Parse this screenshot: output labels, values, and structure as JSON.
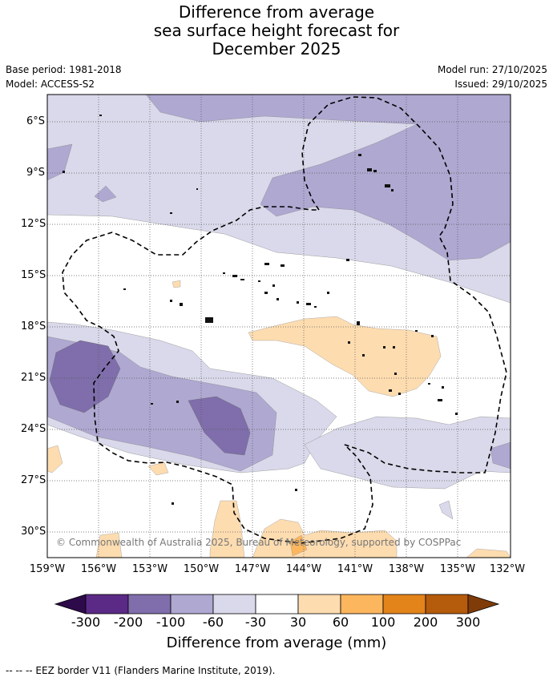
{
  "title": {
    "line1": "Difference from average",
    "line2": "sea surface height forecast for",
    "line3": "December 2025"
  },
  "meta": {
    "base_period": "Base period: 1981-2018",
    "model": "Model: ACCESS-S2",
    "model_run": "Model run: 27/10/2025",
    "issued": "Issued: 29/10/2025"
  },
  "axes": {
    "lat_labels": [
      "6°S",
      "9°S",
      "12°S",
      "15°S",
      "18°S",
      "21°S",
      "24°S",
      "27°S",
      "30°S"
    ],
    "lon_labels": [
      "159°W",
      "156°W",
      "153°W",
      "150°W",
      "147°W",
      "144°W",
      "141°W",
      "138°W",
      "135°W",
      "132°W"
    ]
  },
  "copyright": "© Commonwealth of Australia 2025, Bureau of Meteorology, supported by COSPPac",
  "colorbar": {
    "ticks": [
      "-300",
      "-200",
      "-100",
      "-60",
      "-30",
      "30",
      "60",
      "100",
      "200",
      "300"
    ],
    "colors": [
      "#5b2a86",
      "#7f6eab",
      "#afa8d1",
      "#d9d9eb",
      "#ffffff",
      "#fddcb0",
      "#fbb65e",
      "#e3841a",
      "#b55b0c"
    ],
    "under_color": "#2d0a4a",
    "over_color": "#7f3b08",
    "label": "Difference from average (mm)"
  },
  "legend_note": "--  --  -- EEZ border V11 (Flanders Marine Institute, 2019)."
}
